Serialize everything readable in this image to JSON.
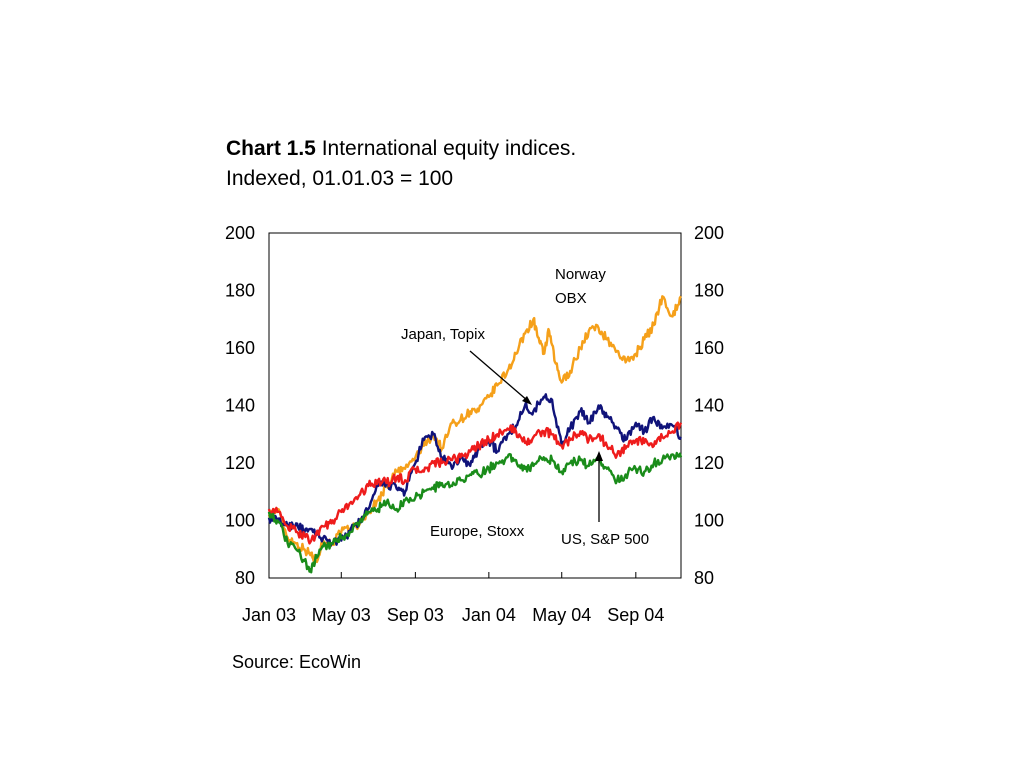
{
  "header": {
    "chart_number": "Chart 1.5",
    "title_rest": " International equity indices.",
    "subtitle": "Indexed, 01.01.03 = 100"
  },
  "source": "Source: EcoWin",
  "chart_data": {
    "type": "line",
    "title": "International equity indices.",
    "subtitle": "Indexed, 01.01.03 = 100",
    "xlabel": "",
    "ylabel": "",
    "x_ticks": [
      "Jan 03",
      "May 03",
      "Sep 03",
      "Jan 04",
      "May 04",
      "Sep 04"
    ],
    "x_tick_dates": [
      "2003-01-01",
      "2003-05-01",
      "2003-09-01",
      "2004-01-01",
      "2004-05-01",
      "2004-09-01"
    ],
    "x_range": [
      "2003-01-01",
      "2004-11-15"
    ],
    "ylim": [
      80,
      200
    ],
    "y_ticks": [
      80,
      100,
      120,
      140,
      160,
      180,
      200
    ],
    "y_axis_right": true,
    "grid": false,
    "series": [
      {
        "name": "Norway OBX",
        "color": "#f5a01a",
        "x": [
          "2003-01-01",
          "2003-01-15",
          "2003-02-01",
          "2003-02-15",
          "2003-03-01",
          "2003-03-12",
          "2003-03-20",
          "2003-04-01",
          "2003-04-15",
          "2003-05-01",
          "2003-05-15",
          "2003-06-01",
          "2003-06-15",
          "2003-07-01",
          "2003-07-15",
          "2003-08-01",
          "2003-08-15",
          "2003-09-01",
          "2003-09-15",
          "2003-10-01",
          "2003-10-15",
          "2003-11-01",
          "2003-11-15",
          "2003-12-01",
          "2003-12-15",
          "2004-01-01",
          "2004-01-15",
          "2004-02-01",
          "2004-02-15",
          "2004-03-01",
          "2004-03-15",
          "2004-03-25",
          "2004-04-01",
          "2004-04-10",
          "2004-04-20",
          "2004-05-01",
          "2004-05-15",
          "2004-06-01",
          "2004-06-15",
          "2004-07-01",
          "2004-07-15",
          "2004-08-01",
          "2004-08-15",
          "2004-09-01",
          "2004-09-15",
          "2004-10-01",
          "2004-10-15",
          "2004-11-01",
          "2004-11-15"
        ],
        "values": [
          102,
          104,
          94,
          92,
          90,
          88,
          86,
          93,
          92,
          96,
          97,
          99,
          103,
          107,
          112,
          117,
          118,
          122,
          126,
          130,
          125,
          134,
          135,
          138,
          138,
          143,
          147,
          152,
          158,
          165,
          170,
          162,
          158,
          166,
          155,
          148,
          152,
          160,
          166,
          167,
          163,
          159,
          155,
          158,
          163,
          168,
          178,
          171,
          178
        ]
      },
      {
        "name": "Japan, Topix",
        "color": "#10137a",
        "x": [
          "2003-01-01",
          "2003-01-15",
          "2003-02-01",
          "2003-02-15",
          "2003-03-01",
          "2003-03-15",
          "2003-04-01",
          "2003-04-15",
          "2003-05-01",
          "2003-05-15",
          "2003-06-01",
          "2003-06-15",
          "2003-07-01",
          "2003-07-15",
          "2003-08-01",
          "2003-08-15",
          "2003-09-01",
          "2003-09-15",
          "2003-10-01",
          "2003-10-15",
          "2003-11-01",
          "2003-11-15",
          "2003-12-01",
          "2003-12-15",
          "2004-01-01",
          "2004-01-15",
          "2004-02-01",
          "2004-02-15",
          "2004-03-01",
          "2004-03-15",
          "2004-04-01",
          "2004-04-15",
          "2004-05-01",
          "2004-05-15",
          "2004-06-01",
          "2004-06-15",
          "2004-07-01",
          "2004-07-15",
          "2004-08-01",
          "2004-08-15",
          "2004-09-01",
          "2004-09-15",
          "2004-10-01",
          "2004-10-15",
          "2004-11-01",
          "2004-11-15"
        ],
        "values": [
          101,
          100,
          98,
          99,
          96,
          96,
          94,
          92,
          93,
          96,
          100,
          104,
          112,
          113,
          111,
          110,
          120,
          128,
          130,
          122,
          118,
          122,
          119,
          125,
          128,
          124,
          130,
          133,
          140,
          138,
          143,
          142,
          126,
          132,
          138,
          134,
          140,
          136,
          132,
          128,
          134,
          131,
          136,
          132,
          133,
          129
        ]
      },
      {
        "name": "US, S&P 500",
        "color": "#ee1c1c",
        "x": [
          "2003-01-01",
          "2003-01-15",
          "2003-02-01",
          "2003-02-15",
          "2003-03-01",
          "2003-03-12",
          "2003-04-01",
          "2003-04-15",
          "2003-05-01",
          "2003-05-15",
          "2003-06-01",
          "2003-06-15",
          "2003-07-01",
          "2003-07-15",
          "2003-08-01",
          "2003-08-15",
          "2003-09-01",
          "2003-09-15",
          "2003-10-01",
          "2003-10-15",
          "2003-11-01",
          "2003-11-15",
          "2003-12-01",
          "2003-12-15",
          "2004-01-01",
          "2004-01-15",
          "2004-02-01",
          "2004-02-15",
          "2004-03-01",
          "2004-03-15",
          "2004-04-01",
          "2004-04-15",
          "2004-05-01",
          "2004-05-15",
          "2004-06-01",
          "2004-06-15",
          "2004-07-01",
          "2004-07-15",
          "2004-08-01",
          "2004-08-15",
          "2004-09-01",
          "2004-09-15",
          "2004-10-01",
          "2004-10-15",
          "2004-11-01",
          "2004-11-15"
        ],
        "values": [
          104,
          103,
          98,
          96,
          95,
          93,
          98,
          99,
          103,
          106,
          109,
          112,
          114,
          113,
          115,
          114,
          118,
          117,
          120,
          120,
          121,
          122,
          124,
          126,
          128,
          130,
          132,
          131,
          127,
          129,
          131,
          130,
          126,
          128,
          131,
          128,
          130,
          126,
          123,
          125,
          128,
          127,
          126,
          129,
          131,
          134
        ]
      },
      {
        "name": "Europe, Stoxx",
        "color": "#1a8c1a",
        "x": [
          "2003-01-01",
          "2003-01-15",
          "2003-02-01",
          "2003-02-15",
          "2003-03-01",
          "2003-03-12",
          "2003-03-20",
          "2003-04-01",
          "2003-04-15",
          "2003-05-01",
          "2003-05-15",
          "2003-06-01",
          "2003-06-15",
          "2003-07-01",
          "2003-07-15",
          "2003-08-01",
          "2003-08-15",
          "2003-09-01",
          "2003-09-15",
          "2003-10-01",
          "2003-10-15",
          "2003-11-01",
          "2003-11-15",
          "2003-12-01",
          "2003-12-15",
          "2004-01-01",
          "2004-01-15",
          "2004-02-01",
          "2004-02-15",
          "2004-03-01",
          "2004-03-15",
          "2004-04-01",
          "2004-04-15",
          "2004-05-01",
          "2004-05-15",
          "2004-06-01",
          "2004-06-15",
          "2004-07-01",
          "2004-07-15",
          "2004-08-01",
          "2004-08-15",
          "2004-09-01",
          "2004-09-15",
          "2004-10-01",
          "2004-10-15",
          "2004-11-01",
          "2004-11-15"
        ],
        "values": [
          103,
          100,
          92,
          90,
          86,
          82,
          88,
          91,
          92,
          94,
          96,
          100,
          103,
          104,
          106,
          104,
          107,
          108,
          110,
          111,
          113,
          112,
          114,
          116,
          116,
          118,
          120,
          122,
          121,
          118,
          119,
          122,
          121,
          117,
          120,
          121,
          119,
          122,
          118,
          114,
          116,
          118,
          117,
          120,
          121,
          123,
          122
        ]
      }
    ],
    "annotations": [
      {
        "lines": [
          "Norway",
          "OBX"
        ]
      },
      {
        "lines": [
          "Japan, Topix"
        ]
      },
      {
        "lines": [
          "Europe, Stoxx"
        ]
      },
      {
        "lines": [
          "US, S&P 500"
        ]
      }
    ]
  }
}
